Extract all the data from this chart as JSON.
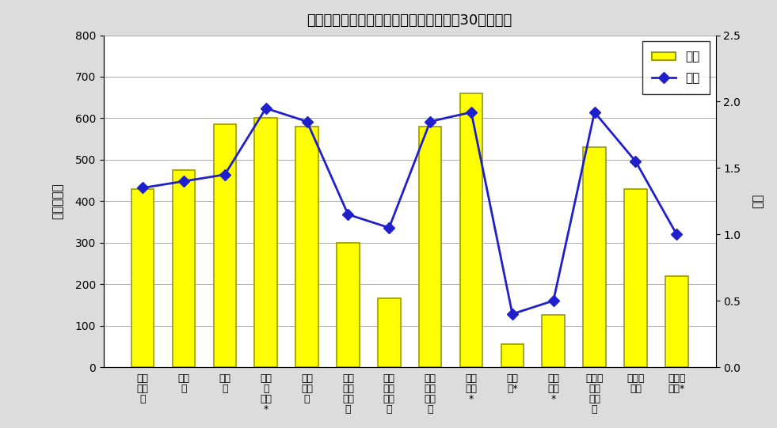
{
  "title": "産業別年末賞与の支給状況（事業所規模30人以上）",
  "categories": [
    "調査\n産業\n計",
    "建設\n業",
    "製造\n業",
    "電気\n・\nガス\n*",
    "情報\n通信\n業",
    "運輸\n業，\n郵便\n業",
    "卸売\n業，\n小売\n業",
    "金融\n業，\n保険\n業",
    "学術\n研究\n*",
    "宿泊\n業*",
    "生活\n関連\n*",
    "教育，\n学習\n支援\n業",
    "医療，\n福祉",
    "サービ\nス業*"
  ],
  "bar_values": [
    430,
    475,
    585,
    600,
    580,
    300,
    165,
    580,
    660,
    55,
    125,
    530,
    430,
    220
  ],
  "line_values": [
    1.35,
    1.4,
    1.45,
    1.95,
    1.85,
    1.15,
    1.05,
    1.85,
    1.92,
    0.4,
    0.5,
    1.92,
    1.55,
    1.0
  ],
  "bar_color": "#FFFF00",
  "bar_edge_color": "#999900",
  "line_color": "#1F1FCC",
  "line_marker": "D",
  "ylabel_left": "金額　千円",
  "ylabel_right": "月数",
  "ylim_left": [
    0,
    800
  ],
  "ylim_right": [
    0,
    2.5
  ],
  "yticks_left": [
    0,
    100,
    200,
    300,
    400,
    500,
    600,
    700,
    800
  ],
  "yticks_right": [
    0.0,
    0.5,
    1.0,
    1.5,
    2.0,
    2.5
  ],
  "legend_labels": [
    "金額",
    "月数"
  ],
  "background_color": "#dcdcdc",
  "plot_bg_color": "#ffffff",
  "grid_color": "#aaaaaa"
}
